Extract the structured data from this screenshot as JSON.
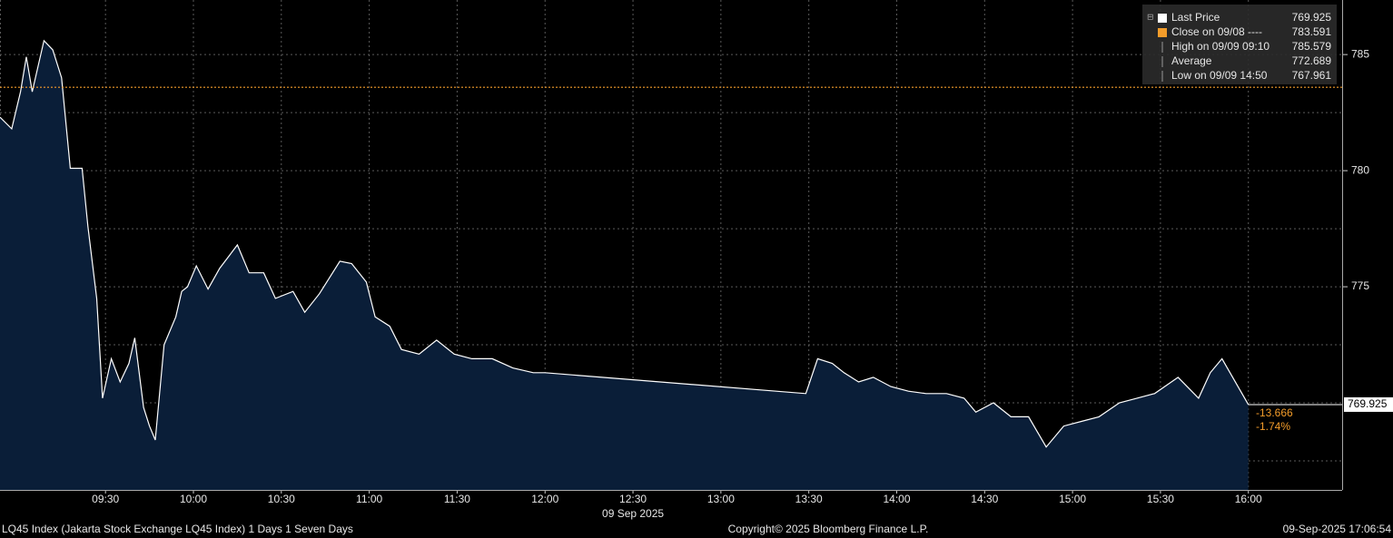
{
  "chart_data": {
    "type": "area",
    "title": "LQ45 Index (Jakarta Stock Exchange LQ45 Index) 1 Days 1 Seven Days",
    "x_label": "09 Sep 2025",
    "copyright": "Copyright© 2025 Bloomberg Finance L.P.",
    "timestamp": "09-Sep-2025 17:06:54",
    "color": "#ffffff",
    "fill": "#0a1e38",
    "x": [
      "08:54",
      "08:58",
      "09:01",
      "09:03",
      "09:05",
      "09:09",
      "09:12",
      "09:15",
      "09:18",
      "09:22",
      "09:24",
      "09:27",
      "09:29",
      "09:32",
      "09:35",
      "09:38",
      "09:40",
      "09:43",
      "09:45",
      "09:47",
      "09:50",
      "09:54",
      "09:56",
      "09:58",
      "10:01",
      "10:05",
      "10:09",
      "10:15",
      "10:19",
      "10:24",
      "10:28",
      "10:34",
      "10:38",
      "10:43",
      "10:50",
      "10:54",
      "10:59",
      "11:02",
      "11:07",
      "11:11",
      "11:17",
      "11:23",
      "11:29",
      "11:35",
      "11:42",
      "11:49",
      "11:56",
      "12:00",
      "13:29",
      "13:33",
      "13:38",
      "13:42",
      "13:47",
      "13:52",
      "13:58",
      "14:04",
      "14:10",
      "14:17",
      "14:23",
      "14:27",
      "14:33",
      "14:39",
      "14:45",
      "14:51",
      "14:57",
      "15:03",
      "15:09",
      "15:16",
      "15:22",
      "15:28",
      "15:36",
      "15:43",
      "15:47",
      "15:51",
      "16:00"
    ],
    "values": [
      782.3,
      781.8,
      783.4,
      784.9,
      783.4,
      785.6,
      785.2,
      784.0,
      780.1,
      780.1,
      777.6,
      774.5,
      770.2,
      771.9,
      770.9,
      771.7,
      772.8,
      769.8,
      769.0,
      768.4,
      772.5,
      773.7,
      774.8,
      775.0,
      775.9,
      774.9,
      775.8,
      776.8,
      775.6,
      775.6,
      774.5,
      774.8,
      773.9,
      774.7,
      776.1,
      776.0,
      775.2,
      773.7,
      773.3,
      772.3,
      772.1,
      772.7,
      772.1,
      771.9,
      771.9,
      771.5,
      771.3,
      771.3,
      770.4,
      771.9,
      771.7,
      771.3,
      770.9,
      771.1,
      770.7,
      770.5,
      770.4,
      770.4,
      770.2,
      769.6,
      770.0,
      769.4,
      769.4,
      768.1,
      769.0,
      769.2,
      769.4,
      770.0,
      770.2,
      770.4,
      771.1,
      770.2,
      771.3,
      771.9,
      769.925
    ],
    "xlim": [
      "08:54",
      "16:32"
    ],
    "xticks": [
      "09:30",
      "10:00",
      "10:30",
      "11:00",
      "11:30",
      "12:00",
      "12:30",
      "13:00",
      "13:30",
      "14:00",
      "14:30",
      "15:00",
      "15:30",
      "16:00"
    ],
    "ylim": [
      766.25,
      787.35
    ],
    "yticks": [
      775,
      780,
      785
    ],
    "minor_yticks": [
      767.5,
      770,
      772.5,
      777.5,
      782.5
    ],
    "grid": true,
    "reference_line": {
      "value": 783.591,
      "color": "#f39c2a"
    },
    "last_price": 769.925,
    "change": -13.666,
    "change_pct": "-1.74%",
    "legend": [
      {
        "label": "Last Price",
        "value": 769.925,
        "color": "#ffffff"
      },
      {
        "label": "Close on 09/08 ----",
        "value": 783.591,
        "color": "#f39c2a"
      },
      {
        "label": "High on 09/09 09:10",
        "value": 785.579
      },
      {
        "label": "Average",
        "value": 772.689
      },
      {
        "label": "Low on 09/09 14:50",
        "value": 767.961
      }
    ]
  }
}
